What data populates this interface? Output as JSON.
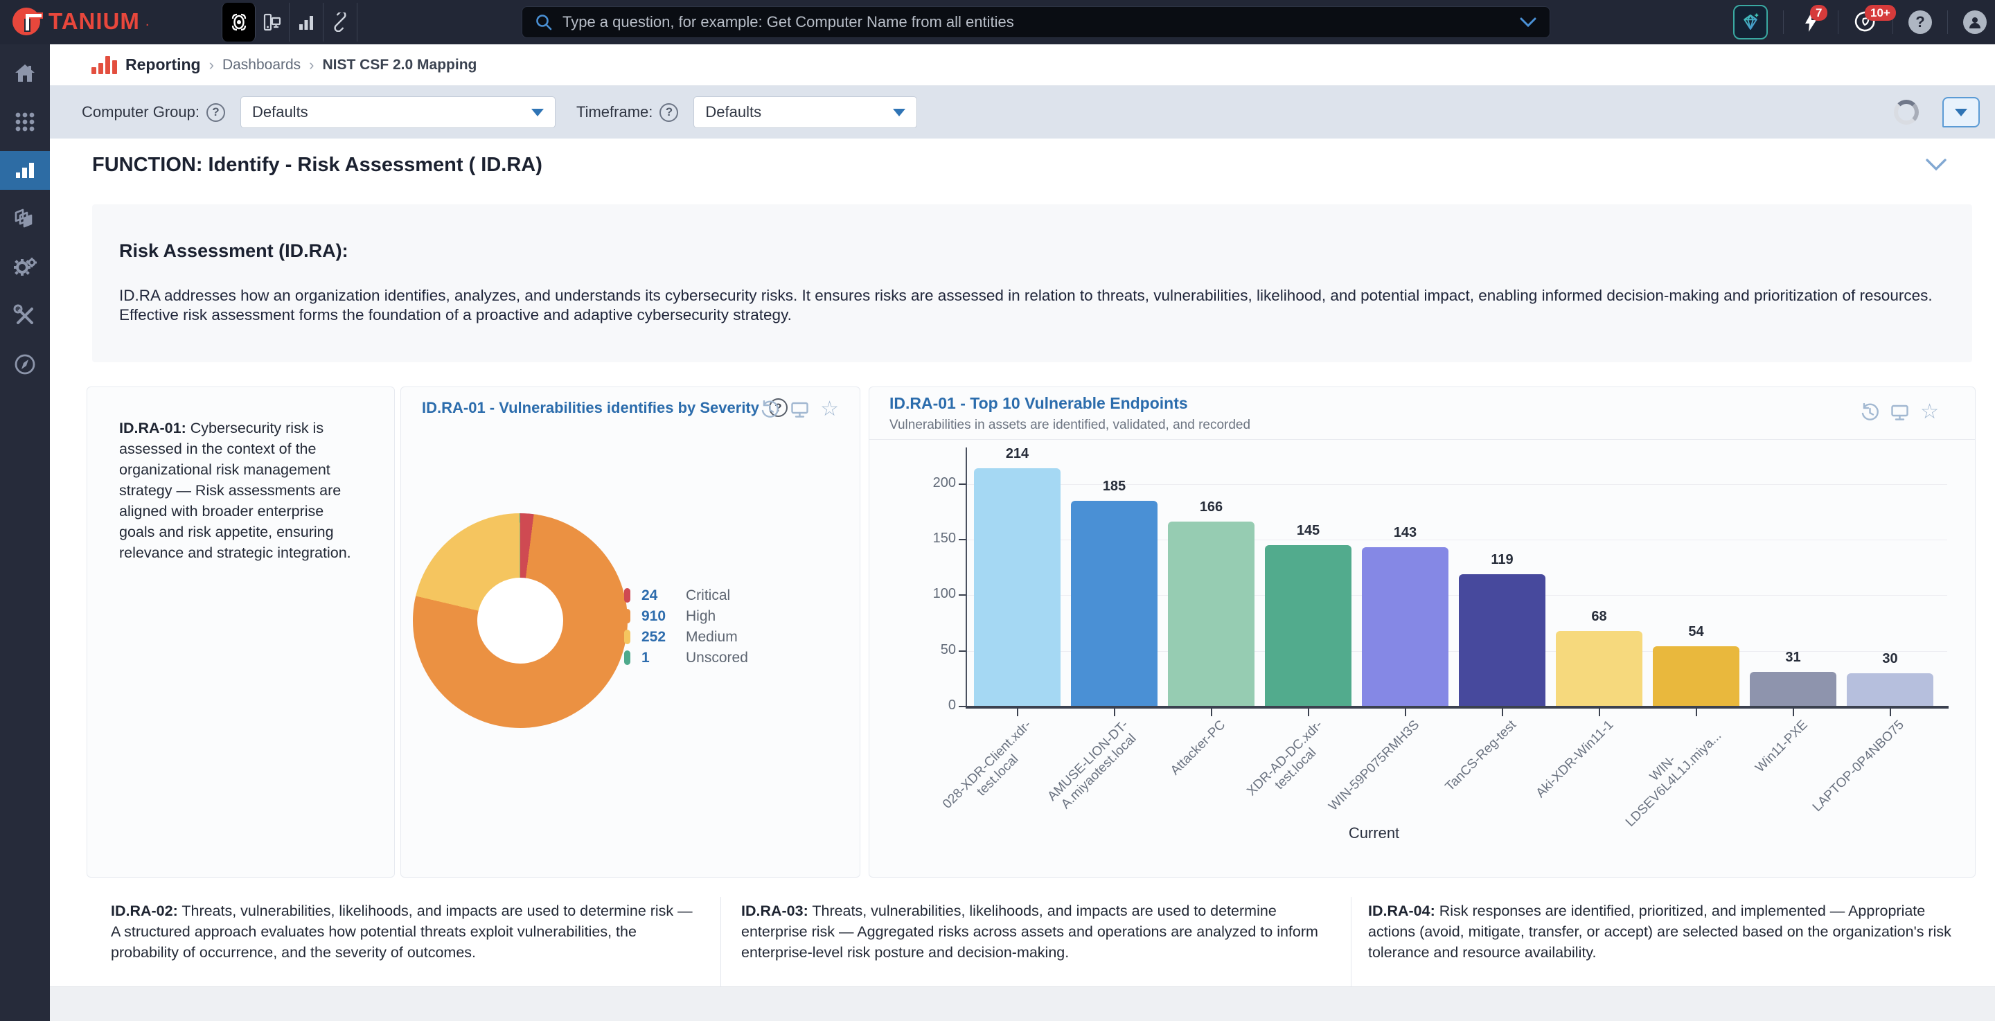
{
  "topbar": {
    "logo_text": "TANIUM",
    "logo_dot": ".",
    "search_placeholder": "Type a question, for example: Get Computer Name from all entities",
    "lightning_badge": "7",
    "gauge_badge": "10+"
  },
  "icons": {
    "help_glyph": "?",
    "star_glyph": "☆"
  },
  "breadcrumb": {
    "app": "Reporting",
    "sep": "›",
    "level1": "Dashboards",
    "level2": "NIST CSF 2.0 Mapping"
  },
  "filters": {
    "computer_group_label": "Computer Group:",
    "computer_group_value": "Defaults",
    "timeframe_label": "Timeframe:",
    "timeframe_value": "Defaults"
  },
  "section": {
    "title": "FUNCTION: Identify - Risk Assessment ( ID.RA)",
    "summary_heading": "Risk Assessment (ID.RA):",
    "summary_text": "ID.RA addresses how an organization identifies, analyzes, and understands its cybersecurity risks. It ensures risks are assessed in relation to threats, vulnerabilities, likelihood, and potential impact, enabling informed decision-making and prioritization of resources. Effective risk assessment forms the foundation of a proactive and adaptive cybersecurity strategy."
  },
  "cards": {
    "idra01": {
      "code": "ID.RA-01:",
      "body": " Cybersecurity risk is assessed in the context of the organizational risk management strategy — Risk assessments are aligned with broader enterprise goals and risk appetite, ensuring relevance and strategic integration."
    },
    "idra02": {
      "code": "ID.RA-02:",
      "body": " Threats, vulnerabilities, likelihoods, and impacts are used to determine risk — A structured approach evaluates how potential threats exploit vulnerabilities, the probability of occurrence, and the severity of outcomes."
    },
    "idra03": {
      "code": "ID.RA-03:",
      "body": " Threats, vulnerabilities, likelihoods, and impacts are used to determine enterprise risk — Aggregated risks across assets and operations are analyzed to inform enterprise-level risk posture and decision-making."
    },
    "idra04": {
      "code": "ID.RA-04:",
      "body": " Risk responses are identified, prioritized, and implemented — Appropriate actions (avoid, mitigate, transfer, or accept) are selected based on the organization's risk tolerance and resource availability."
    }
  },
  "chart_data": [
    {
      "type": "pie",
      "donut": true,
      "title": "ID.RA-01 - Vulnerabilities identifies by Severity",
      "labels": [
        "Critical",
        "High",
        "Medium",
        "Unscored"
      ],
      "values": [
        24,
        910,
        252,
        1
      ],
      "colors": [
        "#cf4a52",
        "#eb9142",
        "#f5c55f",
        "#4faa8c"
      ],
      "legend_position": "right"
    },
    {
      "type": "bar",
      "title": "ID.RA-01 - Top 10 Vulnerable Endpoints",
      "subtitle": "Vulnerabilities in assets are identified, validated, and recorded",
      "categories": [
        "028-XDR-Client.xdr-\ntest.local",
        "AMUSE-LION-DT-\nA.miyaotest.local",
        "Attacker-PC",
        "XDR-AD-DC.xdr-\ntest.local",
        "WIN-59P075RMH3S",
        "TanCS-Reg-test",
        "Aki-XDR-Win11-1",
        "WIN-\nLDSEV6L4L1J.miya...",
        "Win11-PXE",
        "LAPTOP-0P4NBO75"
      ],
      "values": [
        214,
        185,
        166,
        145,
        143,
        119,
        68,
        54,
        31,
        30
      ],
      "bar_colors": [
        "#a5d8f3",
        "#4a90d5",
        "#96ccb2",
        "#52ab8d",
        "#8588e5",
        "#47499d",
        "#f6d97d",
        "#e9b83d",
        "#8e94ad",
        "#b6bfdd"
      ],
      "xlabel": "Current",
      "ylabel": "",
      "ylim": [
        0,
        225
      ],
      "yticks": [
        0,
        50,
        100,
        150,
        200
      ],
      "grid": true
    }
  ]
}
